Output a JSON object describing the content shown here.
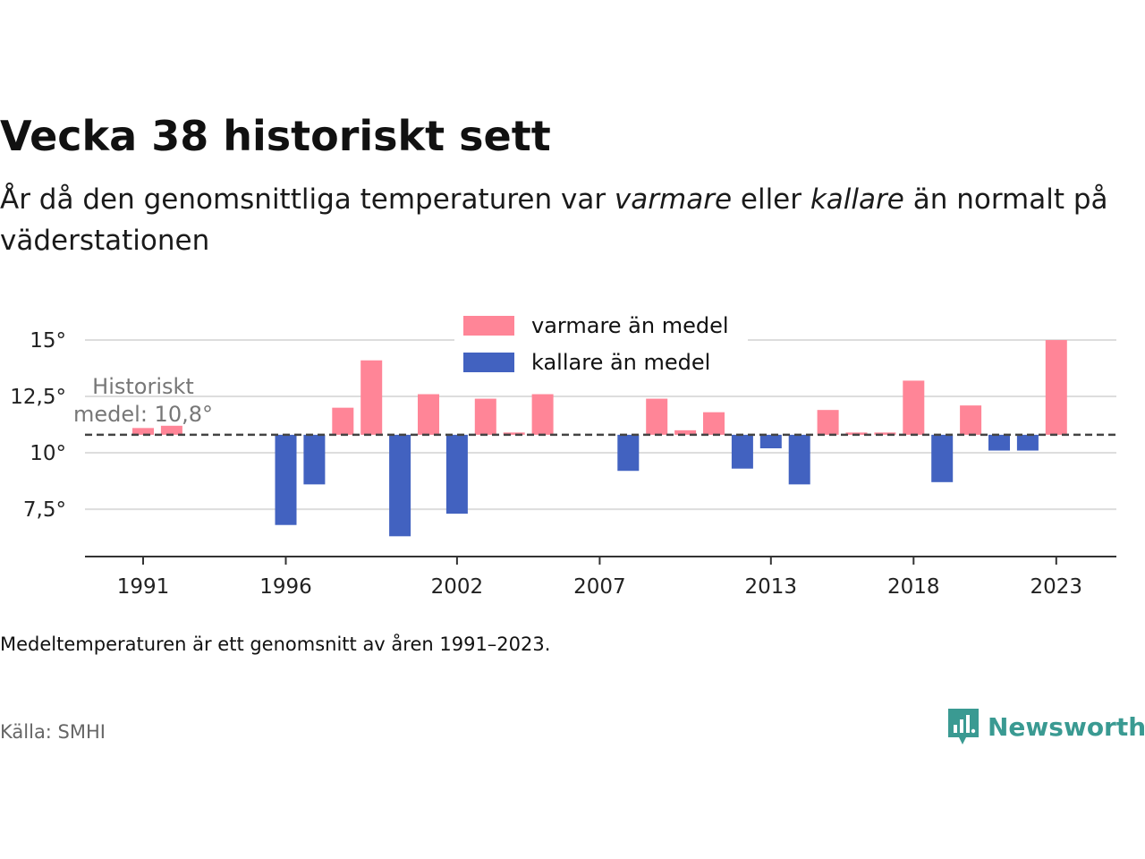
{
  "title": "Vecka 38 historiskt sett",
  "subtitle": {
    "part1": "År då den genomsnittliga temperaturen var ",
    "em1": "varmare",
    "part2": " eller ",
    "em2": "kallare",
    "part3": " än normalt på väderstationen"
  },
  "note": "Medeltemperaturen är ett genomsnitt av åren 1991–2023.",
  "source": "Källa: SMHI",
  "brand": {
    "name": "Newsworthy",
    "icon": "newsworthy-logo-icon",
    "color": "#3a9a92"
  },
  "chart_data": {
    "type": "bar",
    "baseline": 10.8,
    "baseline_label": [
      "Historiskt",
      "medel: 10,8°"
    ],
    "x": [
      1991,
      1992,
      1993,
      1994,
      1995,
      1996,
      1997,
      1998,
      1999,
      2000,
      2001,
      2002,
      2003,
      2004,
      2005,
      2006,
      2007,
      2008,
      2009,
      2010,
      2011,
      2012,
      2013,
      2014,
      2015,
      2016,
      2017,
      2018,
      2019,
      2020,
      2021,
      2022,
      2023
    ],
    "values": [
      11.1,
      11.2,
      null,
      null,
      null,
      6.8,
      8.6,
      12.0,
      14.1,
      6.3,
      12.6,
      7.3,
      12.4,
      10.9,
      12.6,
      null,
      null,
      9.2,
      12.4,
      11.0,
      11.8,
      9.3,
      10.2,
      8.6,
      11.9,
      10.9,
      10.9,
      13.2,
      8.7,
      12.1,
      10.1,
      10.1,
      15.0
    ],
    "ylim": [
      5.4,
      15.2
    ],
    "yticks": [
      7.5,
      10,
      12.5,
      15
    ],
    "ytick_labels": [
      "7,5°",
      "10°",
      "12,5°",
      "15°"
    ],
    "xticks": [
      1991,
      1996,
      2002,
      2007,
      2013,
      2018,
      2023
    ],
    "xtick_labels": [
      "1991",
      "1996",
      "2002",
      "2007",
      "2013",
      "2018",
      "2023"
    ],
    "legend": {
      "placement": "top-center",
      "warm": "varmare än medel",
      "cold": "kallare än medel"
    },
    "colors": {
      "warm": "#ff8597",
      "cold": "#4262c0",
      "grid": "#dddddd",
      "axis": "#333333",
      "baseline": "#444444",
      "baseline_label": "#777777"
    }
  }
}
